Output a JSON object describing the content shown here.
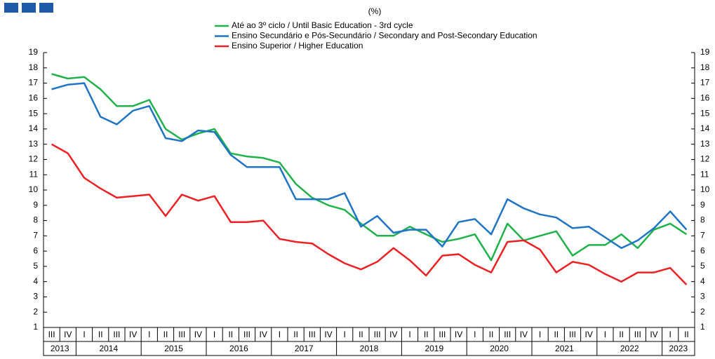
{
  "chart_data": {
    "type": "line",
    "subtitle": "(%)",
    "categories": [
      "III",
      "IV",
      "I",
      "II",
      "III",
      "IV",
      "I",
      "II",
      "III",
      "IV",
      "I",
      "II",
      "III",
      "IV",
      "I",
      "II",
      "III",
      "IV",
      "I",
      "II",
      "III",
      "IV",
      "I",
      "II",
      "III",
      "IV",
      "I",
      "II",
      "III",
      "IV",
      "I",
      "II",
      "III",
      "IV",
      "I",
      "II",
      "III",
      "IV",
      "I",
      "II"
    ],
    "years": [
      "2013",
      "2014",
      "2015",
      "2016",
      "2017",
      "2018",
      "2019",
      "2020",
      "2021",
      "2022",
      "2023"
    ],
    "series": [
      {
        "name": "Até ao 3º ciclo / Until Basic Education - 3rd cycle",
        "color": "#1fb24a",
        "values": [
          17.6,
          17.3,
          17.4,
          16.6,
          15.5,
          15.5,
          15.9,
          14.0,
          13.3,
          13.7,
          14.0,
          12.4,
          12.2,
          12.1,
          11.8,
          10.4,
          9.5,
          9.0,
          8.7,
          7.8,
          7.0,
          7.0,
          7.6,
          7.1,
          6.6,
          6.8,
          7.1,
          5.4,
          7.8,
          6.7,
          7.0,
          7.3,
          5.7,
          6.4,
          6.4,
          7.1,
          6.2,
          7.4,
          7.8,
          7.1
        ]
      },
      {
        "name": "Ensino Secundário e Pós-Secundário / Secondary and Post-Secondary Education",
        "color": "#1e74c6",
        "values": [
          16.6,
          16.9,
          17.0,
          14.8,
          14.3,
          15.2,
          15.5,
          13.4,
          13.2,
          13.9,
          13.8,
          12.3,
          11.5,
          11.5,
          11.5,
          9.4,
          9.4,
          9.4,
          9.8,
          7.6,
          8.3,
          7.2,
          7.4,
          7.4,
          6.3,
          7.9,
          8.1,
          7.1,
          9.4,
          8.8,
          8.4,
          8.2,
          7.5,
          7.6,
          6.9,
          6.2,
          6.7,
          7.5,
          8.6,
          7.4
        ]
      },
      {
        "name": "Ensino Superior / Higher Education",
        "color": "#ee2024",
        "values": [
          13.0,
          12.4,
          10.8,
          10.1,
          9.5,
          9.6,
          9.7,
          8.3,
          9.7,
          9.3,
          9.6,
          7.9,
          7.9,
          8.0,
          6.8,
          6.6,
          6.5,
          5.8,
          5.2,
          4.8,
          5.3,
          6.2,
          5.4,
          4.4,
          5.7,
          5.8,
          5.1,
          4.6,
          6.6,
          6.7,
          6.1,
          4.6,
          5.3,
          5.1,
          4.5,
          4.0,
          4.6,
          4.6,
          4.9,
          3.8
        ]
      }
    ],
    "ylim": [
      1,
      19
    ],
    "yticks": [
      1,
      2,
      3,
      4,
      5,
      6,
      7,
      8,
      9,
      10,
      11,
      12,
      13,
      14,
      15,
      16,
      17,
      18,
      19
    ],
    "grid": false
  }
}
